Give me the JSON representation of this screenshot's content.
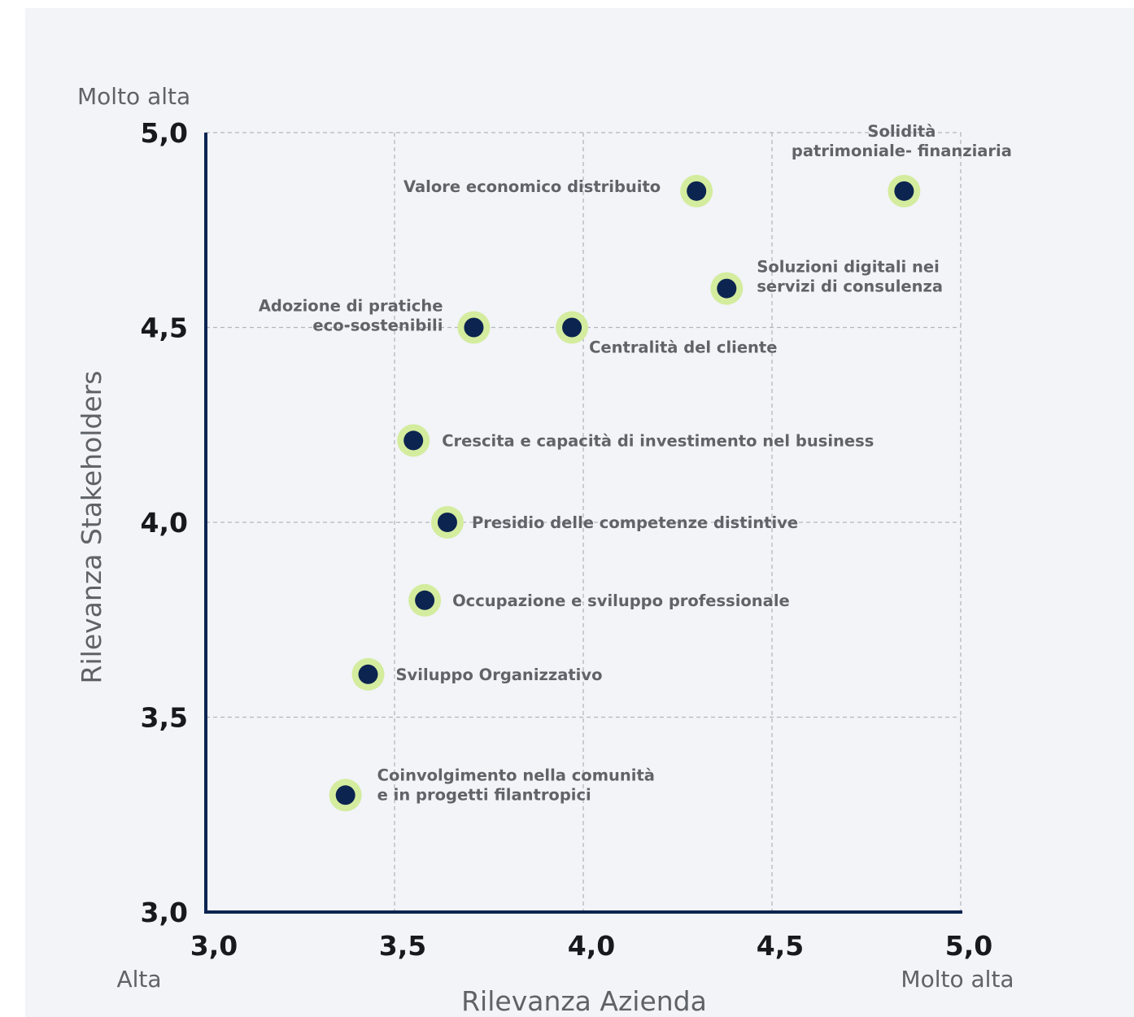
{
  "chart_data": {
    "type": "scatter",
    "title": "",
    "xlabel": "Rilevanza Azienda",
    "ylabel": "Rilevanza Stakeholders",
    "xlim": [
      3.0,
      5.0
    ],
    "ylim": [
      3.0,
      5.0
    ],
    "x_ticks": [
      "3,0",
      "3,5",
      "4,0",
      "4,5",
      "5,0"
    ],
    "y_ticks": [
      "3,0",
      "3,5",
      "4,0",
      "4,5",
      "5,0"
    ],
    "x_low_label": "Alta",
    "x_high_label": "Molto alta",
    "y_high_label": "Molto alta",
    "grid": true,
    "colors": {
      "point": "#0b2450",
      "halo": "#d4ec9e",
      "axis": "#0b2450"
    },
    "points": [
      {
        "label": [
          "Solidità",
          "patrimoniale- finanziaria"
        ],
        "x": 4.85,
        "y": 4.85
      },
      {
        "label": [
          "Valore economico distribuito"
        ],
        "x": 4.3,
        "y": 4.85
      },
      {
        "label": [
          "Soluzioni digitali nei",
          "servizi di consulenza"
        ],
        "x": 4.38,
        "y": 4.6
      },
      {
        "label": [
          "Adozione di pratiche",
          "eco-sostenibili"
        ],
        "x": 3.71,
        "y": 4.5
      },
      {
        "label": [
          "Centralità del cliente"
        ],
        "x": 3.97,
        "y": 4.5
      },
      {
        "label": [
          "Crescita e capacità di investimento nel business"
        ],
        "x": 3.55,
        "y": 4.21
      },
      {
        "label": [
          "Presidio delle competenze distintive"
        ],
        "x": 3.64,
        "y": 4.0
      },
      {
        "label": [
          "Occupazione e sviluppo professionale"
        ],
        "x": 3.58,
        "y": 3.8
      },
      {
        "label": [
          "Sviluppo Organizzativo"
        ],
        "x": 3.43,
        "y": 3.61
      },
      {
        "label": [
          "Coinvolgimento nella comunità",
          "e in progetti filantropici"
        ],
        "x": 3.37,
        "y": 3.3
      }
    ]
  }
}
